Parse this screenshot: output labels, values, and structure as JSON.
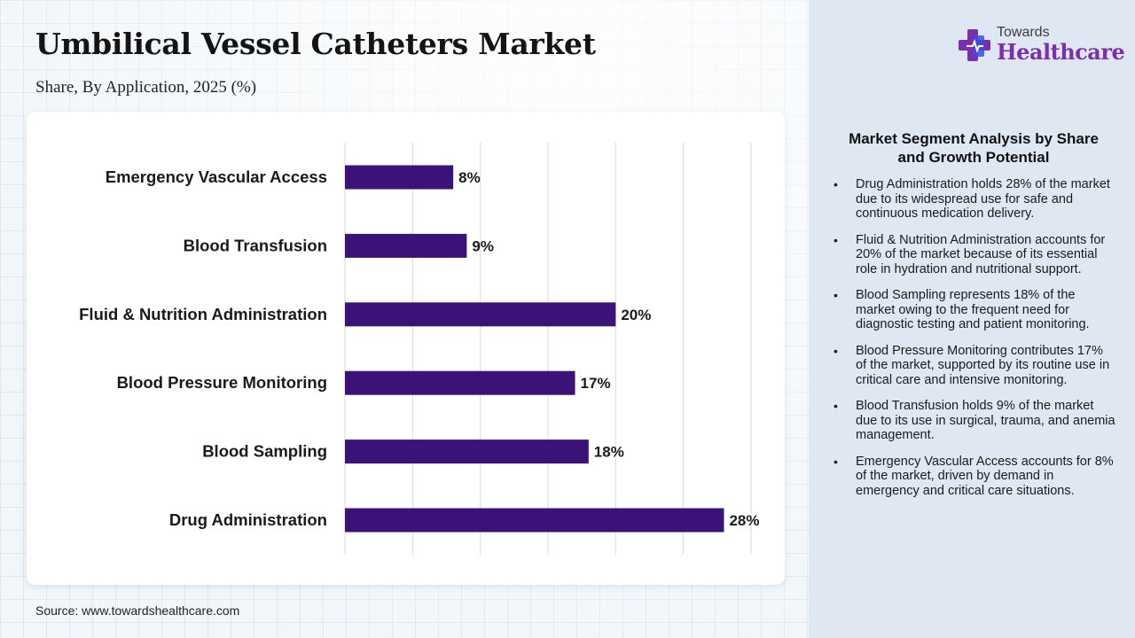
{
  "title": "Umbilical Vessel Catheters Market",
  "subtitle": "Share, By Application, 2025 (%)",
  "source": "Source: www.towardshealthcare.com",
  "brand": {
    "line1": "Towards",
    "line2": "Healthcare",
    "icon": "medical-cross-icon",
    "colors": {
      "primary": "#7a2fb0",
      "secondary": "#3a4fd8"
    }
  },
  "colors": {
    "bar": "#3b1278",
    "grid": "#d9d9d9"
  },
  "chart_data": {
    "type": "bar",
    "orientation": "horizontal",
    "categories": [
      "Emergency Vascular Access",
      "Blood Transfusion",
      "Fluid & Nutrition Administration",
      "Blood Pressure Monitoring",
      "Blood Sampling",
      "Drug Administration"
    ],
    "values": [
      8,
      9,
      20,
      17,
      18,
      28
    ],
    "labels": [
      "8%",
      "9%",
      "20%",
      "17%",
      "18%",
      "28%"
    ],
    "xlim": [
      0,
      30
    ],
    "grid": true,
    "xlabel": "",
    "ylabel": ""
  },
  "panel": {
    "heading": "Market Segment Analysis by Share and Growth Potential",
    "items": [
      "Drug Administration holds 28% of the market due to its widespread use for safe and continuous medication delivery.",
      "Fluid & Nutrition Administration accounts for 20% of the market because of its essential role in hydration and nutritional support.",
      "Blood Sampling represents 18% of the market owing to the frequent need for diagnostic testing and patient monitoring.",
      "Blood Pressure Monitoring contributes 17% of the market, supported by its routine use in critical care and intensive monitoring.",
      "Blood Transfusion holds 9% of the market due to its use in surgical, trauma, and anemia management.",
      "Emergency Vascular Access accounts for 8% of the market, driven by demand in emergency and critical care situations."
    ]
  }
}
